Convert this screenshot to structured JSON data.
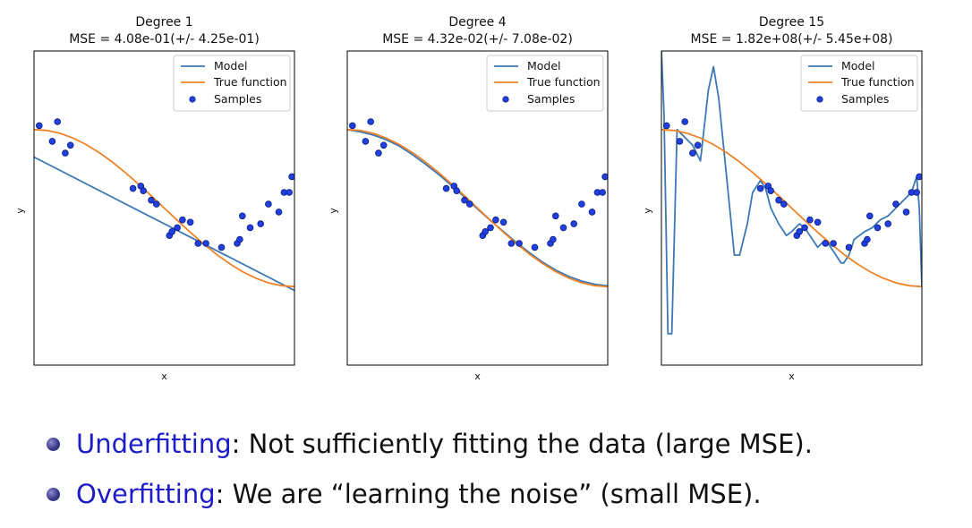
{
  "chart_data": [
    {
      "type": "line",
      "title": "Degree 1",
      "subtitle": "MSE = 4.08e-01(+/- 4.25e-01)",
      "xlabel": "x",
      "ylabel": "y",
      "xlim": [
        0,
        1
      ],
      "ylim": [
        -2,
        2
      ],
      "legend": {
        "position": "top-right",
        "entries": [
          "Model",
          "True function",
          "Samples"
        ]
      },
      "colors": {
        "model": "#3c78b4",
        "true_function": "#f08228",
        "samples": "#2040e0"
      },
      "model_curve": {
        "x": [
          0,
          1
        ],
        "y": [
          0.65,
          -1.05
        ]
      },
      "true_function": {
        "x": [
          0,
          0.05,
          0.1,
          0.15,
          0.2,
          0.25,
          0.3,
          0.35,
          0.4,
          0.45,
          0.5,
          0.55,
          0.6,
          0.65,
          0.7,
          0.75,
          0.8,
          0.85,
          0.9,
          0.95,
          1.0
        ],
        "y": [
          1.0,
          0.988,
          0.951,
          0.891,
          0.809,
          0.707,
          0.588,
          0.454,
          0.309,
          0.156,
          0.0,
          -0.156,
          -0.309,
          -0.454,
          -0.588,
          -0.707,
          -0.809,
          -0.891,
          -0.951,
          -0.988,
          -1.0
        ]
      },
      "samples": {
        "x": [
          0.02,
          0.07,
          0.09,
          0.12,
          0.14,
          0.38,
          0.41,
          0.42,
          0.45,
          0.47,
          0.52,
          0.53,
          0.55,
          0.57,
          0.6,
          0.63,
          0.66,
          0.72,
          0.78,
          0.79,
          0.8,
          0.83,
          0.87,
          0.9,
          0.94,
          0.96,
          0.98,
          0.99
        ],
        "y": [
          1.05,
          0.85,
          1.1,
          0.7,
          0.8,
          0.25,
          0.28,
          0.22,
          0.1,
          0.05,
          -0.35,
          -0.3,
          -0.25,
          -0.15,
          -0.18,
          -0.45,
          -0.45,
          -0.5,
          -0.45,
          -0.4,
          -0.1,
          -0.25,
          -0.2,
          0.05,
          -0.05,
          0.2,
          0.2,
          0.4
        ]
      }
    },
    {
      "type": "line",
      "title": "Degree 4",
      "subtitle": "MSE = 4.32e-02(+/- 7.08e-02)",
      "xlabel": "x",
      "ylabel": "y",
      "xlim": [
        0,
        1
      ],
      "ylim": [
        -2,
        2
      ],
      "legend": {
        "position": "top-right",
        "entries": [
          "Model",
          "True function",
          "Samples"
        ]
      },
      "colors": {
        "model": "#3c78b4",
        "true_function": "#f08228",
        "samples": "#2040e0"
      },
      "model_curve": {
        "x": [
          0,
          0.05,
          0.1,
          0.15,
          0.2,
          0.25,
          0.3,
          0.35,
          0.4,
          0.45,
          0.5,
          0.55,
          0.6,
          0.65,
          0.7,
          0.75,
          0.8,
          0.85,
          0.9,
          0.95,
          1.0
        ],
        "y": [
          1.0,
          0.97,
          0.93,
          0.87,
          0.79,
          0.68,
          0.56,
          0.43,
          0.29,
          0.14,
          -0.01,
          -0.16,
          -0.3,
          -0.44,
          -0.57,
          -0.69,
          -0.79,
          -0.87,
          -0.93,
          -0.97,
          -0.99
        ]
      },
      "true_function": {
        "x": [
          0,
          0.05,
          0.1,
          0.15,
          0.2,
          0.25,
          0.3,
          0.35,
          0.4,
          0.45,
          0.5,
          0.55,
          0.6,
          0.65,
          0.7,
          0.75,
          0.8,
          0.85,
          0.9,
          0.95,
          1.0
        ],
        "y": [
          1.0,
          0.988,
          0.951,
          0.891,
          0.809,
          0.707,
          0.588,
          0.454,
          0.309,
          0.156,
          0.0,
          -0.156,
          -0.309,
          -0.454,
          -0.588,
          -0.707,
          -0.809,
          -0.891,
          -0.951,
          -0.988,
          -1.0
        ]
      },
      "samples": {
        "x": [
          0.02,
          0.07,
          0.09,
          0.12,
          0.14,
          0.38,
          0.41,
          0.42,
          0.45,
          0.47,
          0.52,
          0.53,
          0.55,
          0.57,
          0.6,
          0.63,
          0.66,
          0.72,
          0.78,
          0.79,
          0.8,
          0.83,
          0.87,
          0.9,
          0.94,
          0.96,
          0.98,
          0.99
        ],
        "y": [
          1.05,
          0.85,
          1.1,
          0.7,
          0.8,
          0.25,
          0.28,
          0.22,
          0.1,
          0.05,
          -0.35,
          -0.3,
          -0.25,
          -0.15,
          -0.18,
          -0.45,
          -0.45,
          -0.5,
          -0.45,
          -0.4,
          -0.1,
          -0.25,
          -0.2,
          0.05,
          -0.05,
          0.2,
          0.2,
          0.4
        ]
      }
    },
    {
      "type": "line",
      "title": "Degree 15",
      "subtitle": "MSE = 1.82e+08(+/- 5.45e+08)",
      "xlabel": "x",
      "ylabel": "y",
      "xlim": [
        0,
        1
      ],
      "ylim": [
        -2,
        2
      ],
      "legend": {
        "position": "top-right",
        "entries": [
          "Model",
          "True function",
          "Samples"
        ]
      },
      "colors": {
        "model": "#3c78b4",
        "true_function": "#f08228",
        "samples": "#2040e0"
      },
      "model_curve": {
        "x": [
          0.0,
          0.01,
          0.025,
          0.04,
          0.06,
          0.09,
          0.12,
          0.15,
          0.18,
          0.2,
          0.22,
          0.25,
          0.28,
          0.3,
          0.33,
          0.35,
          0.38,
          0.4,
          0.42,
          0.45,
          0.48,
          0.5,
          0.53,
          0.55,
          0.58,
          0.6,
          0.63,
          0.66,
          0.69,
          0.7,
          0.72,
          0.74,
          0.78,
          0.81,
          0.84,
          0.87,
          0.9,
          0.93,
          0.96,
          0.98,
          0.99,
          1.0
        ],
        "y": [
          2.0,
          1.2,
          -1.6,
          -1.6,
          1.0,
          0.9,
          0.8,
          0.6,
          1.5,
          1.8,
          1.4,
          0.4,
          -0.6,
          -0.6,
          -0.2,
          0.2,
          0.35,
          0.25,
          0.0,
          -0.2,
          -0.35,
          -0.3,
          -0.2,
          -0.25,
          -0.4,
          -0.5,
          -0.4,
          -0.55,
          -0.7,
          -0.7,
          -0.6,
          -0.4,
          -0.3,
          -0.25,
          -0.15,
          -0.1,
          0.0,
          0.1,
          0.2,
          0.4,
          0.0,
          -1.0
        ]
      },
      "true_function": {
        "x": [
          0,
          0.05,
          0.1,
          0.15,
          0.2,
          0.25,
          0.3,
          0.35,
          0.4,
          0.45,
          0.5,
          0.55,
          0.6,
          0.65,
          0.7,
          0.75,
          0.8,
          0.85,
          0.9,
          0.95,
          1.0
        ],
        "y": [
          1.0,
          0.988,
          0.951,
          0.891,
          0.809,
          0.707,
          0.588,
          0.454,
          0.309,
          0.156,
          0.0,
          -0.156,
          -0.309,
          -0.454,
          -0.588,
          -0.707,
          -0.809,
          -0.891,
          -0.951,
          -0.988,
          -1.0
        ]
      },
      "samples": {
        "x": [
          0.02,
          0.07,
          0.09,
          0.12,
          0.14,
          0.38,
          0.41,
          0.42,
          0.45,
          0.47,
          0.52,
          0.53,
          0.55,
          0.57,
          0.6,
          0.63,
          0.66,
          0.72,
          0.78,
          0.79,
          0.8,
          0.83,
          0.87,
          0.9,
          0.94,
          0.96,
          0.98,
          0.99
        ],
        "y": [
          1.05,
          0.85,
          1.1,
          0.7,
          0.8,
          0.25,
          0.28,
          0.22,
          0.1,
          0.05,
          -0.35,
          -0.3,
          -0.25,
          -0.15,
          -0.18,
          -0.45,
          -0.45,
          -0.5,
          -0.45,
          -0.4,
          -0.1,
          -0.25,
          -0.2,
          0.05,
          -0.05,
          0.2,
          0.2,
          0.4
        ]
      }
    }
  ],
  "bullets": [
    {
      "term": "Underfitting",
      "text": ": Not sufficiently fitting the data (large MSE)."
    },
    {
      "term": "Overfitting",
      "text": ": We are “learning the noise” (small MSE)."
    }
  ]
}
